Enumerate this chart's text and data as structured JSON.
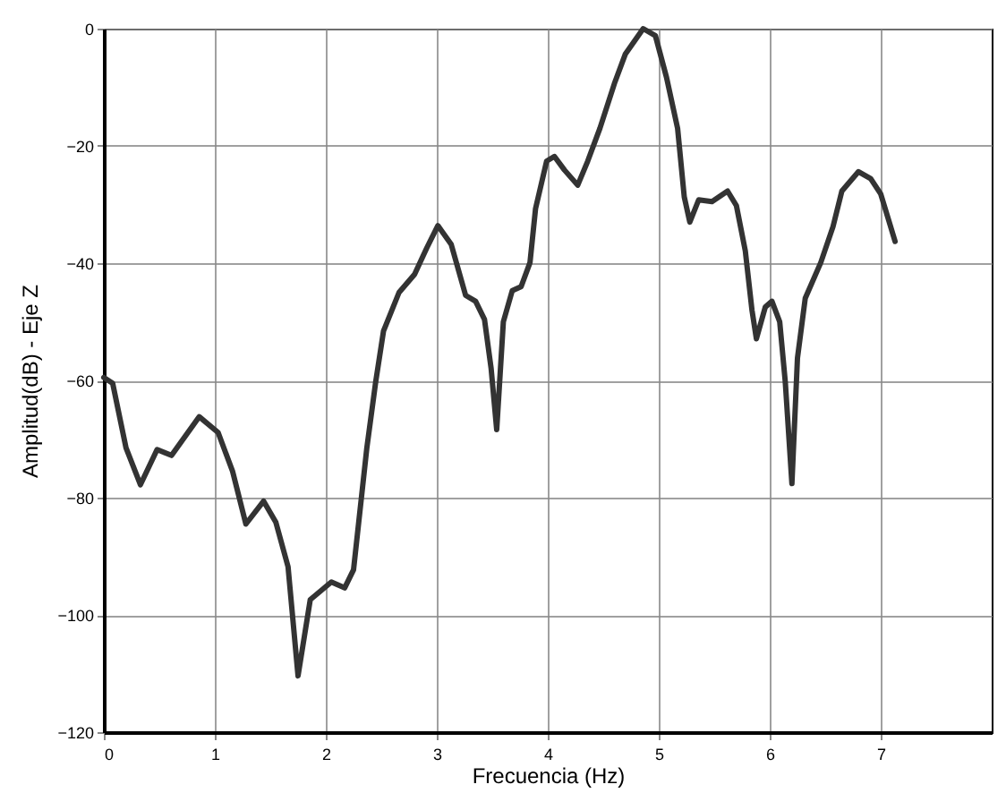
{
  "chart_data": {
    "type": "line",
    "xlabel": "Frecuencia (Hz)",
    "ylabel": "Amplitud(dB) - Eje Z",
    "x": [
      0,
      0.08,
      0.2,
      0.33,
      0.48,
      0.61,
      0.86,
      1.03,
      1.16,
      1.28,
      1.44,
      1.55,
      1.66,
      1.75,
      1.86,
      2.05,
      2.17,
      2.25,
      2.37,
      2.45,
      2.52,
      2.66,
      2.8,
      2.91,
      3.01,
      3.13,
      3.26,
      3.35,
      3.43,
      3.49,
      3.54,
      3.6,
      3.68,
      3.76,
      3.84,
      3.89,
      3.99,
      4.06,
      4.15,
      4.27,
      4.36,
      4.47,
      4.6,
      4.7,
      4.86,
      4.97,
      5.07,
      5.17,
      5.23,
      5.28,
      5.36,
      5.48,
      5.62,
      5.7,
      5.78,
      5.84,
      5.88,
      5.96,
      6.02,
      6.09,
      6.14,
      6.2,
      6.25,
      6.32,
      6.46,
      6.57,
      6.65,
      6.8,
      6.91,
      7,
      7.13
    ],
    "series": [
      {
        "color": "#333333",
        "values": [
          -59.5,
          -60.5,
          -71.5,
          -77.8,
          -71.8,
          -72.8,
          -66.2,
          -68.9,
          -75.5,
          -84.5,
          -80.6,
          -84.2,
          -91.8,
          -110.4,
          -97.4,
          -94.4,
          -95.4,
          -92.3,
          -71.5,
          -60.2,
          -51.6,
          -45,
          -41.9,
          -37.4,
          -33.6,
          -36.8,
          -45.5,
          -46.5,
          -49.6,
          -58,
          -68.4,
          -50,
          -44.7,
          -44,
          -39.9,
          -30.7,
          -22.6,
          -21.8,
          -24.1,
          -26.7,
          -22.6,
          -17,
          -9.4,
          -4.3,
          0,
          -1.2,
          -8.3,
          -17,
          -28.7,
          -33,
          -29.2,
          -29.5,
          -27.7,
          -30.2,
          -37.9,
          -48,
          -52.9,
          -47.5,
          -46.5,
          -50,
          -60.2,
          -77.6,
          -56.2,
          -46,
          -39.9,
          -33.8,
          -27.7,
          -24.4,
          -25.6,
          -28.2,
          -36.3
        ]
      }
    ],
    "xlim": [
      0,
      8
    ],
    "xticks": [
      0,
      1,
      2,
      3,
      4,
      5,
      6,
      7
    ],
    "ylim": [
      -120,
      0
    ],
    "yticks": [
      -120,
      -100,
      -80,
      -60,
      -40,
      -20,
      0
    ],
    "grid": true,
    "marker": "none",
    "line_style": "solid"
  }
}
